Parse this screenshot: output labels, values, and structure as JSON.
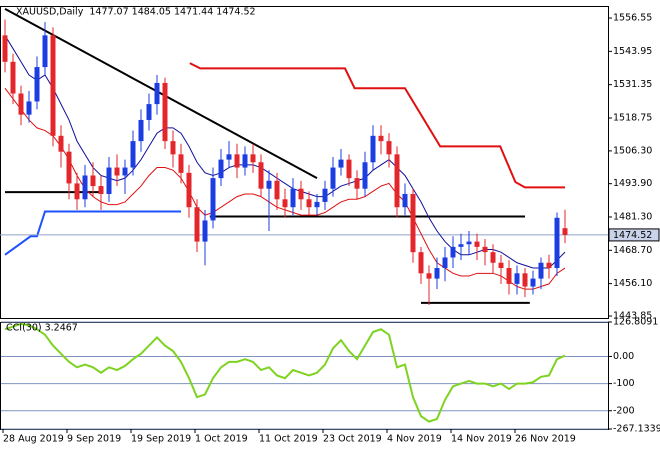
{
  "chart_data": [
    {
      "type": "candlestick",
      "title": "XAUUSD,Daily  1477.07 1484.05 1471.44 1474.52",
      "categories": [
        "28 Aug 2019",
        null,
        null,
        null,
        null,
        null,
        null,
        null,
        "9 Sep 2019",
        null,
        null,
        null,
        null,
        null,
        null,
        null,
        "19 Sep 2019",
        null,
        null,
        null,
        null,
        null,
        null,
        null,
        "1 Oct 2019",
        null,
        null,
        null,
        null,
        null,
        null,
        null,
        "11 Oct 2019",
        null,
        null,
        null,
        null,
        null,
        null,
        null,
        "23 Oct 2019",
        null,
        null,
        null,
        null,
        null,
        null,
        null,
        "4 Nov 2019",
        null,
        null,
        null,
        null,
        null,
        null,
        null,
        "14 Nov 2019",
        null,
        null,
        null,
        null,
        null,
        null,
        null,
        "26 Nov 2019",
        null,
        null,
        null,
        null,
        null,
        null
      ],
      "open": [
        1550,
        1540,
        1528,
        1520,
        1525,
        1538,
        1550,
        1512,
        1506,
        1494,
        1488,
        1497,
        1493,
        1490,
        1500,
        1497,
        1500,
        1510,
        1518,
        1524,
        1532,
        1510,
        1505,
        1498,
        1485,
        1472,
        1480,
        1496,
        1503,
        1505,
        1500,
        1505,
        1502,
        1492,
        1495,
        1488,
        1485,
        1492,
        1488,
        1485,
        1487,
        1492,
        1500,
        1503,
        1496,
        1492,
        1502,
        1512,
        1510,
        1505,
        1485,
        1490,
        1468,
        1460,
        1458,
        1462,
        1466,
        1470,
        1471,
        1472,
        1470,
        1468,
        1464,
        1462,
        1456,
        1460,
        1455,
        1458,
        1464,
        1462,
        1477.07
      ],
      "high": [
        1556,
        1543,
        1531,
        1529,
        1542,
        1555,
        1553,
        1516,
        1509,
        1498,
        1501,
        1502,
        1497,
        1504,
        1505,
        1503,
        1514,
        1522,
        1528,
        1535,
        1534,
        1514,
        1509,
        1501,
        1488,
        1484,
        1500,
        1507,
        1510,
        1509,
        1508,
        1509,
        1505,
        1499,
        1498,
        1492,
        1496,
        1495,
        1491,
        1490,
        1495,
        1504,
        1507,
        1505,
        1499,
        1506,
        1516,
        1516,
        1513,
        1508,
        1494,
        1492,
        1470,
        1463,
        1466,
        1470,
        1474,
        1475,
        1476,
        1475,
        1473,
        1471,
        1467,
        1465,
        1463,
        1462,
        1461,
        1466,
        1467,
        1483,
        1484.05
      ],
      "low": [
        1536,
        1524,
        1516,
        1517,
        1522,
        1535,
        1508,
        1500,
        1488,
        1484,
        1485,
        1489,
        1484,
        1487,
        1493,
        1490,
        1497,
        1506,
        1514,
        1520,
        1507,
        1500,
        1494,
        1481,
        1468,
        1463,
        1477,
        1493,
        1500,
        1496,
        1497,
        1498,
        1489,
        1476,
        1484,
        1481,
        1482,
        1484,
        1482,
        1482,
        1484,
        1489,
        1497,
        1493,
        1488,
        1489,
        1499,
        1505,
        1500,
        1481,
        1482,
        1464,
        1456,
        1448,
        1454,
        1457,
        1462,
        1465,
        1467,
        1465,
        1463,
        1460,
        1456,
        1452,
        1452,
        1451,
        1452,
        1454,
        1458,
        1459,
        1471.44
      ],
      "close": [
        1540,
        1528,
        1520,
        1525,
        1538,
        1550,
        1512,
        1506,
        1494,
        1488,
        1497,
        1493,
        1490,
        1500,
        1497,
        1500,
        1510,
        1518,
        1524,
        1532,
        1510,
        1505,
        1498,
        1485,
        1472,
        1480,
        1496,
        1503,
        1505,
        1500,
        1505,
        1502,
        1492,
        1495,
        1488,
        1485,
        1492,
        1488,
        1485,
        1487,
        1492,
        1500,
        1503,
        1496,
        1492,
        1502,
        1512,
        1510,
        1505,
        1485,
        1490,
        1468,
        1460,
        1458,
        1462,
        1466,
        1470,
        1471,
        1472,
        1470,
        1468,
        1464,
        1462,
        1456,
        1460,
        1455,
        1458,
        1464,
        1462,
        1481,
        1474.52
      ],
      "up_color": "#1c3ee0",
      "down_color": "#e3262b",
      "series": [
        {
          "color": "#10109a",
          "values": [
            1550,
            1545,
            1540,
            1535,
            1533,
            1535,
            1530,
            1524,
            1518,
            1510,
            1505,
            1500,
            1497,
            1496,
            1495,
            1496,
            1499,
            1503,
            1508,
            1513,
            1515,
            1515,
            1513,
            1508,
            1502,
            1498,
            1497,
            1498,
            1500,
            1501,
            1501,
            1501,
            1500,
            1498,
            1496,
            1494,
            1492,
            1491,
            1490,
            1489,
            1489,
            1491,
            1493,
            1494,
            1495,
            1496,
            1499,
            1501,
            1503,
            1500,
            1497,
            1492,
            1487,
            1481,
            1476,
            1472,
            1469,
            1467,
            1467,
            1468,
            1469,
            1469,
            1468,
            1466,
            1464,
            1463,
            1462,
            1462,
            1462,
            1465,
            1468
          ]
        },
        {
          "color": "#e01010",
          "values": [
            1530,
            1526,
            1522,
            1518,
            1515,
            1514,
            1512,
            1508,
            1503,
            1497,
            1492,
            1489,
            1487,
            1486,
            1486,
            1487,
            1490,
            1493,
            1497,
            1500,
            1500,
            1499,
            1496,
            1491,
            1485,
            1482,
            1483,
            1485,
            1487,
            1489,
            1490,
            1490,
            1489,
            1487,
            1485,
            1484,
            1483,
            1482,
            1482,
            1482,
            1483,
            1485,
            1487,
            1488,
            1488,
            1489,
            1491,
            1493,
            1494,
            1490,
            1487,
            1481,
            1475,
            1469,
            1464,
            1462,
            1460,
            1459,
            1459,
            1460,
            1460,
            1460,
            1459,
            1457,
            1455,
            1454,
            1454,
            1455,
            1456,
            1460,
            1462
          ]
        }
      ],
      "shapes": [
        {
          "color": "#000000",
          "x": [
            0,
            39
          ],
          "y": [
            1560,
            1496
          ]
        },
        {
          "color": "#000000",
          "x": [
            0,
            12
          ],
          "y": [
            1490.7,
            1490.7
          ]
        },
        {
          "color": "#1e50ff",
          "x": [
            0,
            3.2,
            4,
            5,
            22
          ],
          "y": [
            1467,
            1474,
            1474,
            1483.4,
            1483.4
          ]
        },
        {
          "color": "#e01010",
          "x": [
            23.1,
            24.4,
            42.5,
            43.7,
            50,
            54.4,
            61.9,
            63.8,
            65,
            70
          ],
          "y": [
            1539.5,
            1537.5,
            1537.5,
            1530,
            1530,
            1508,
            1508,
            1494.5,
            1492.5,
            1492.5
          ]
        },
        {
          "color": "#000000",
          "x": [
            25.6,
            65
          ],
          "y": [
            1481.5,
            1481.5
          ]
        },
        {
          "color": "#000000",
          "x": [
            52,
            65.6
          ],
          "y": [
            1448.8,
            1448.8
          ]
        }
      ],
      "current_price": 1474.52,
      "ylim": [
        1443.1,
        1561.1
      ],
      "yticks": [
        1556.55,
        1543.95,
        1531.35,
        1518.75,
        {
          "value": 1506.3,
          "label": "1506.30"
        },
        {
          "value": 1493.9,
          "label": "1493.90"
        },
        {
          "value": 1481.3,
          "label": "1481.30"
        },
        {
          "value": 1468.7,
          "label": "1468.70"
        },
        {
          "value": 1456.1,
          "label": "1456.10"
        },
        1443.85
      ],
      "grid": false
    },
    {
      "type": "line",
      "title": "CCI(30) 3.2467",
      "color": "#7ed321",
      "values": [
        100,
        110,
        120,
        115,
        100,
        80,
        40,
        10,
        -20,
        -40,
        -30,
        -40,
        -60,
        -40,
        -50,
        -35,
        -10,
        10,
        40,
        70,
        40,
        20,
        -20,
        -80,
        -150,
        -140,
        -80,
        -40,
        -20,
        -20,
        -10,
        -20,
        -50,
        -40,
        -70,
        -80,
        -50,
        -60,
        -70,
        -60,
        -30,
        30,
        60,
        20,
        -10,
        40,
        90,
        100,
        80,
        -40,
        -30,
        -150,
        -220,
        -240,
        -230,
        -160,
        -110,
        -100,
        -90,
        -100,
        -100,
        -110,
        -100,
        -120,
        -100,
        -100,
        -95,
        -75,
        -70,
        -10,
        3.2467
      ],
      "ylim": [
        -267.1339,
        126.8091
      ],
      "yticks": [
        126.8091,
        {
          "value": 0,
          "label": "0.00"
        },
        -100,
        -200,
        -267.1339
      ],
      "grid": true
    }
  ]
}
